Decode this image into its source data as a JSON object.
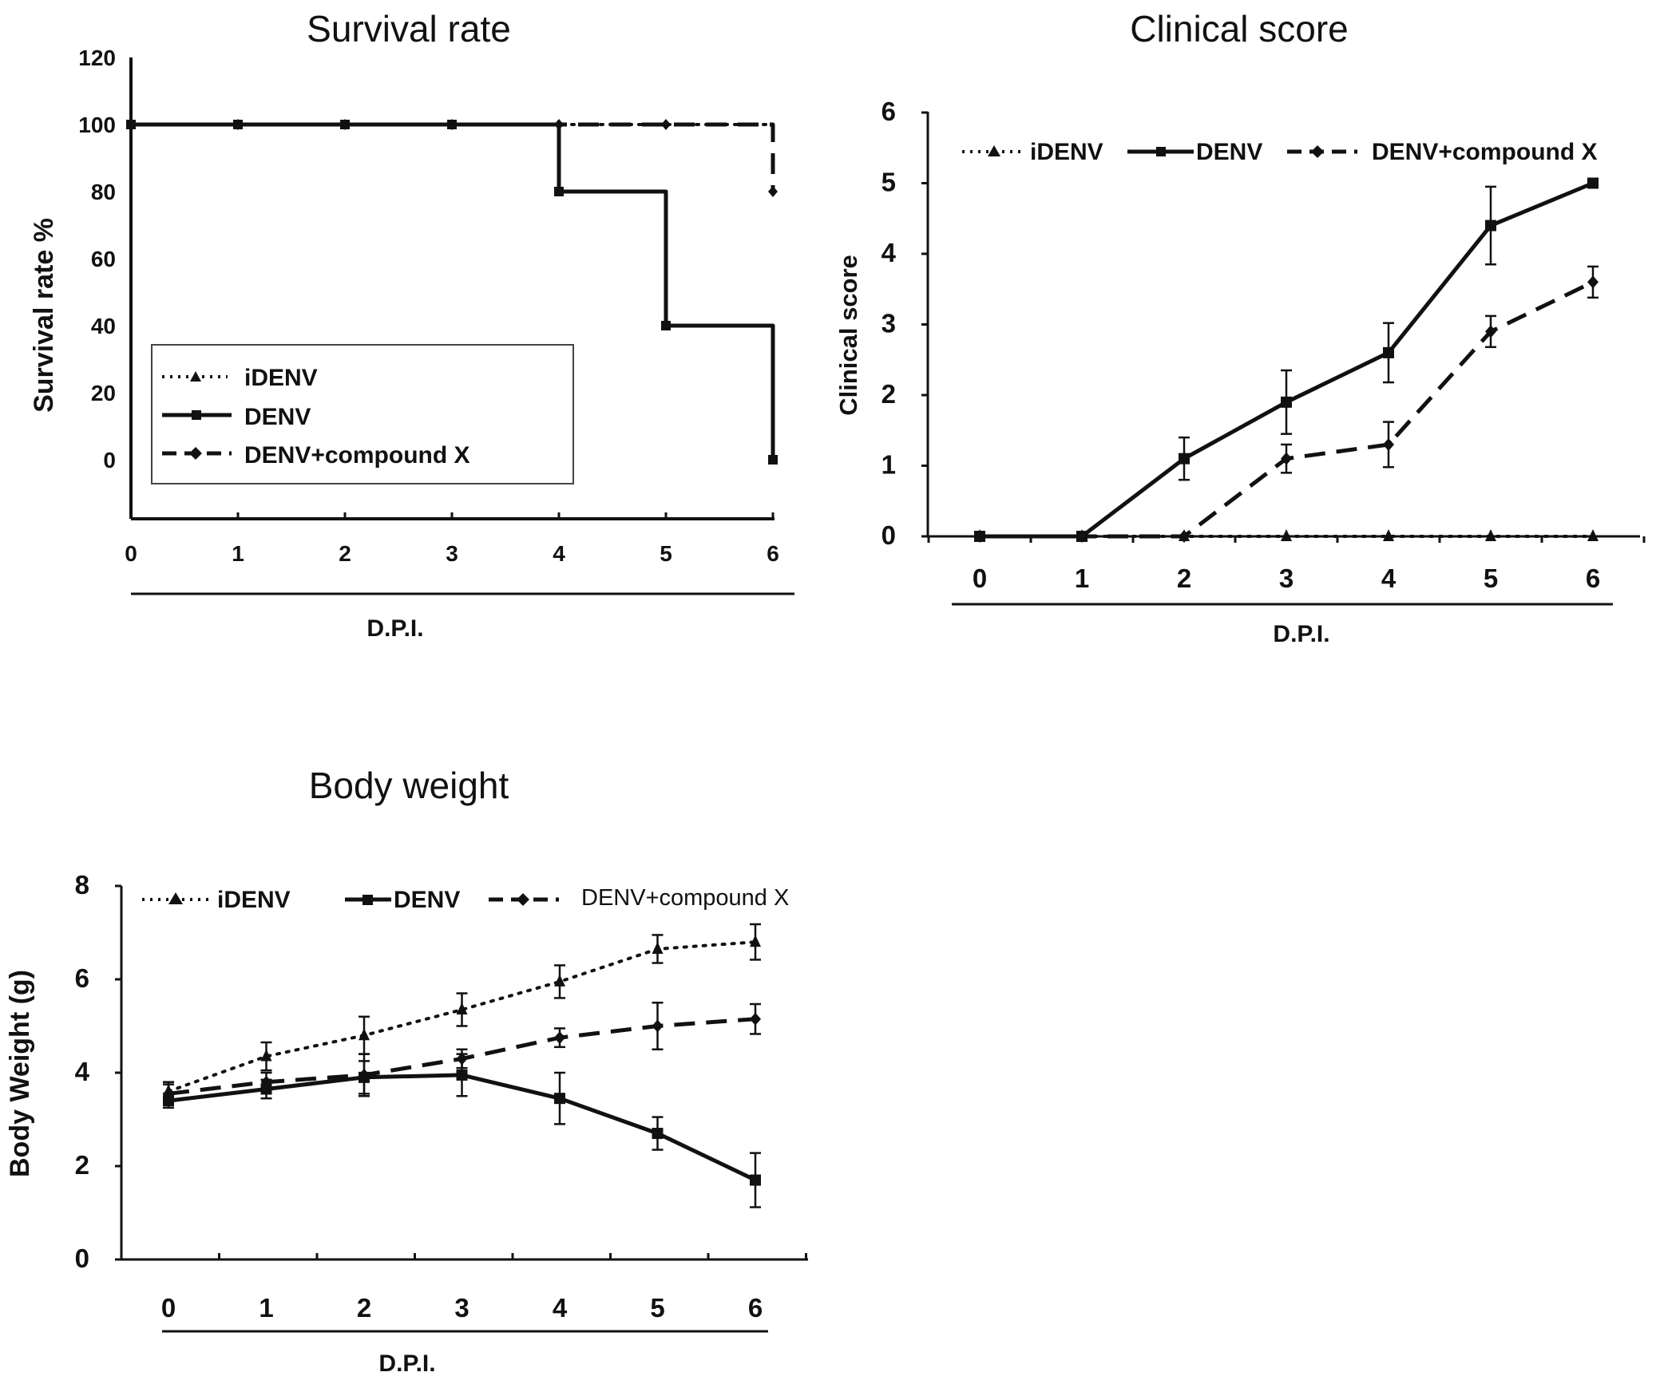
{
  "chart_data": [
    {
      "id": "survival",
      "type": "line",
      "step": true,
      "title": "Survival rate",
      "xlabel": "D.P.I.",
      "ylabel": "Survival rate %",
      "x": [
        0,
        1,
        2,
        3,
        4,
        5,
        6
      ],
      "ylim": [
        -16,
        120
      ],
      "yticks": [
        0,
        20,
        40,
        60,
        80,
        100,
        120
      ],
      "legend_position": "lower-left",
      "series": [
        {
          "name": "iDENV",
          "style": "dotted",
          "marker": "triangle",
          "values": [
            100,
            100,
            100,
            100,
            100,
            100,
            100
          ]
        },
        {
          "name": "DENV",
          "style": "solid",
          "marker": "square",
          "values": [
            100,
            100,
            100,
            100,
            80,
            40,
            0
          ]
        },
        {
          "name": "DENV+compound X",
          "style": "dashed",
          "marker": "diamond",
          "values": [
            100,
            100,
            100,
            100,
            100,
            100,
            80
          ]
        }
      ]
    },
    {
      "id": "clinical",
      "type": "line",
      "title": "Clinical score",
      "xlabel": "D.P.I.",
      "ylabel": "Clinical score",
      "x": [
        0,
        1,
        2,
        3,
        4,
        5,
        6
      ],
      "ylim": [
        0,
        6
      ],
      "yticks": [
        0,
        1,
        2,
        3,
        4,
        5,
        6
      ],
      "legend_position": "top",
      "series": [
        {
          "name": "iDENV",
          "style": "dotted",
          "marker": "triangle",
          "values": [
            0,
            0,
            0,
            0,
            0,
            0,
            0
          ],
          "errors": [
            0,
            0,
            0,
            0,
            0,
            0,
            0
          ]
        },
        {
          "name": "DENV",
          "style": "solid",
          "marker": "square",
          "values": [
            0,
            0,
            1.1,
            1.9,
            2.6,
            4.4,
            5.0
          ],
          "errors": [
            0,
            0,
            0.3,
            0.45,
            0.42,
            0.55,
            0
          ]
        },
        {
          "name": "DENV+compound X",
          "style": "dashed",
          "marker": "diamond",
          "values": [
            0,
            0,
            0,
            1.1,
            1.3,
            2.9,
            3.6
          ],
          "errors": [
            0,
            0,
            0,
            0.2,
            0.32,
            0.22,
            0.22
          ]
        }
      ]
    },
    {
      "id": "weight",
      "type": "line",
      "title": "Body weight",
      "xlabel": "D.P.I.",
      "ylabel": "Body Weight (g)",
      "x": [
        0,
        1,
        2,
        3,
        4,
        5,
        6
      ],
      "ylim": [
        0,
        8
      ],
      "yticks": [
        0,
        2,
        4,
        6,
        8
      ],
      "legend_position": "top",
      "series": [
        {
          "name": "iDENV",
          "style": "dotted",
          "marker": "triangle",
          "values": [
            3.6,
            4.35,
            4.8,
            5.35,
            5.95,
            6.65,
            6.8
          ],
          "errors": [
            0.2,
            0.3,
            0.4,
            0.35,
            0.35,
            0.3,
            0.38
          ]
        },
        {
          "name": "DENV",
          "style": "solid",
          "marker": "square",
          "values": [
            3.4,
            3.65,
            3.9,
            3.95,
            3.45,
            2.7,
            1.7
          ],
          "errors": [
            0.15,
            0.2,
            0.35,
            0.45,
            0.55,
            0.35,
            0.58
          ]
        },
        {
          "name": "DENV+compound X",
          "style": "dashed",
          "marker": "diamond",
          "values": [
            3.55,
            3.8,
            3.95,
            4.3,
            4.75,
            5.0,
            5.15
          ],
          "errors": [
            0.2,
            0.2,
            0.45,
            0.2,
            0.2,
            0.5,
            0.32
          ]
        }
      ]
    }
  ]
}
